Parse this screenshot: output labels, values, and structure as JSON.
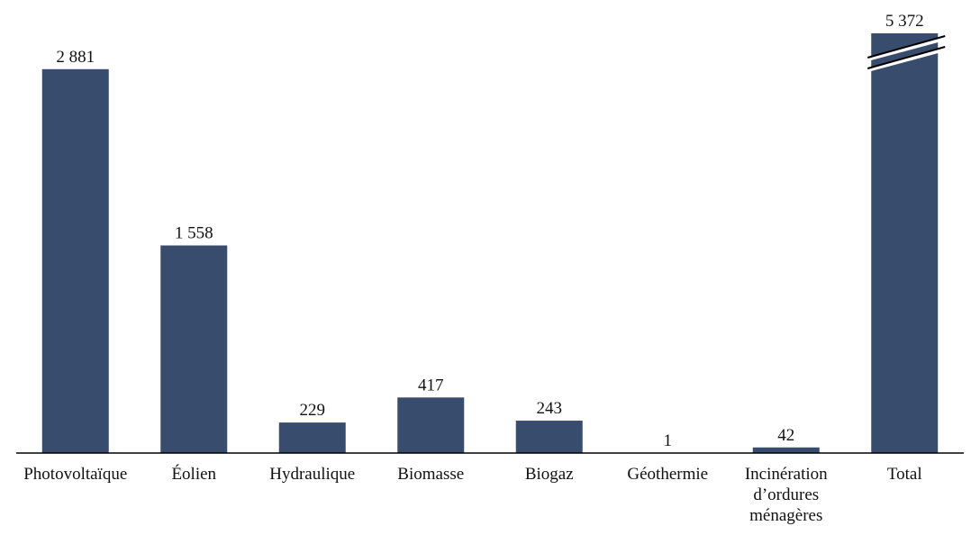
{
  "chart_data": {
    "type": "bar",
    "categories": [
      "Photovoltaïque",
      "Éolien",
      "Hydraulique",
      "Biomasse",
      "Biogaz",
      "Géothermie",
      "Incinération d’ordures ménagères",
      "Total"
    ],
    "values": [
      2881,
      1558,
      229,
      417,
      243,
      1,
      42,
      5372
    ],
    "value_labels": [
      "2 881",
      "1 558",
      "229",
      "417",
      "243",
      "1",
      "42",
      "5 372"
    ],
    "color": "#384d6d",
    "ylim": [
      0,
      3150
    ],
    "axis_break": true
  }
}
